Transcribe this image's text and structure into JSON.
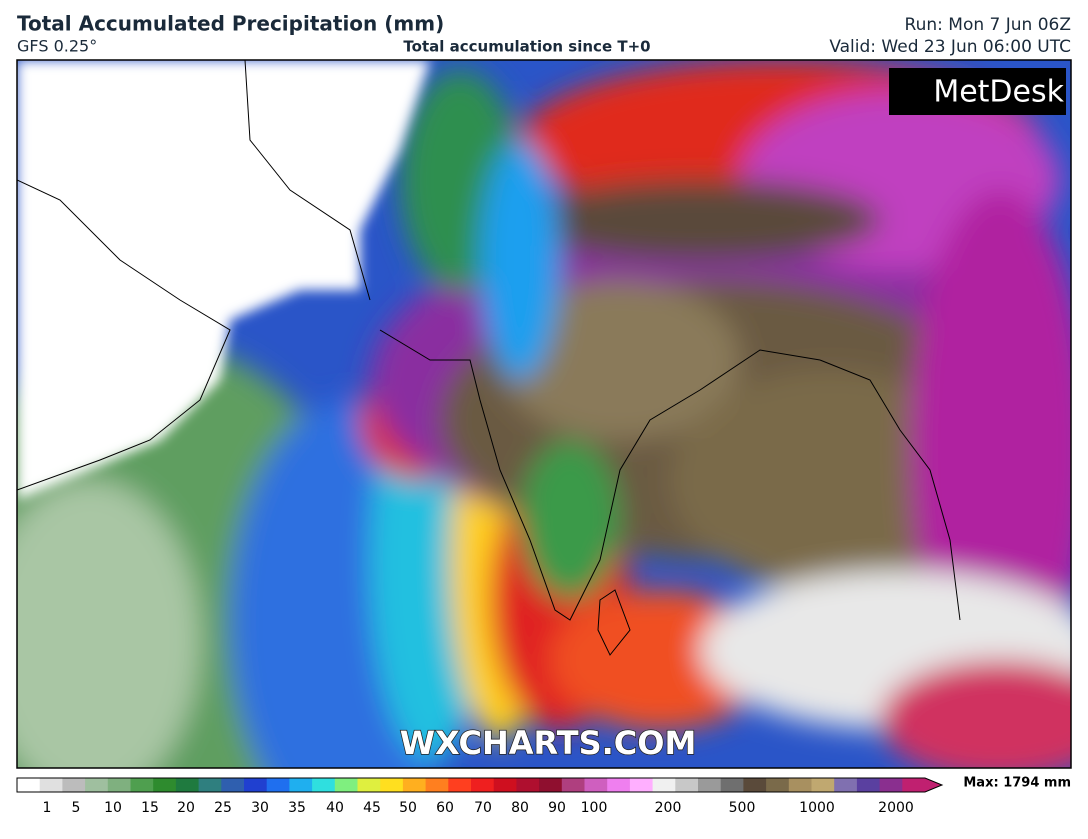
{
  "header": {
    "title": "Total Accumulated Precipitation (mm)",
    "model": "GFS 0.25°",
    "subtitle": "Total accumulation since T+0",
    "run": "Run: Mon 7 Jun 06Z",
    "valid": "Valid: Wed 23 Jun 06:00 UTC"
  },
  "map": {
    "logo": "MetDesk",
    "watermark": "WXCHARTS.COM"
  },
  "colorbar": {
    "ticks": [
      1,
      5,
      10,
      15,
      20,
      25,
      30,
      35,
      40,
      45,
      50,
      60,
      70,
      80,
      90,
      100,
      200,
      500,
      1000,
      2000
    ],
    "max_label": "Max: 1794 mm",
    "colors": [
      "#ffffff",
      "#e0e0e0",
      "#bcbcbc",
      "#9fbf9f",
      "#7fb07f",
      "#4f9f4f",
      "#2e8b2e",
      "#1f7a3f",
      "#2f7f7f",
      "#2f5faf",
      "#2040d0",
      "#1f6fef",
      "#1fafef",
      "#2fdfdf",
      "#7fef7f",
      "#dfef3f",
      "#ffdf1f",
      "#ffaf1f",
      "#ff7f1f",
      "#ff3f1f",
      "#ef1f1f",
      "#cf0f1f",
      "#af0f2f",
      "#8f0f2f",
      "#af3f7f",
      "#cf5fbf",
      "#ef7fef",
      "#ffafff",
      "#f0f0f0",
      "#c8c8c8",
      "#9a9a9a",
      "#6f6f6f",
      "#5a4a3a",
      "#7a6a4a",
      "#a89060",
      "#c0a870",
      "#8070b0",
      "#5a40a0",
      "#8a2f8f",
      "#c02070"
    ]
  }
}
